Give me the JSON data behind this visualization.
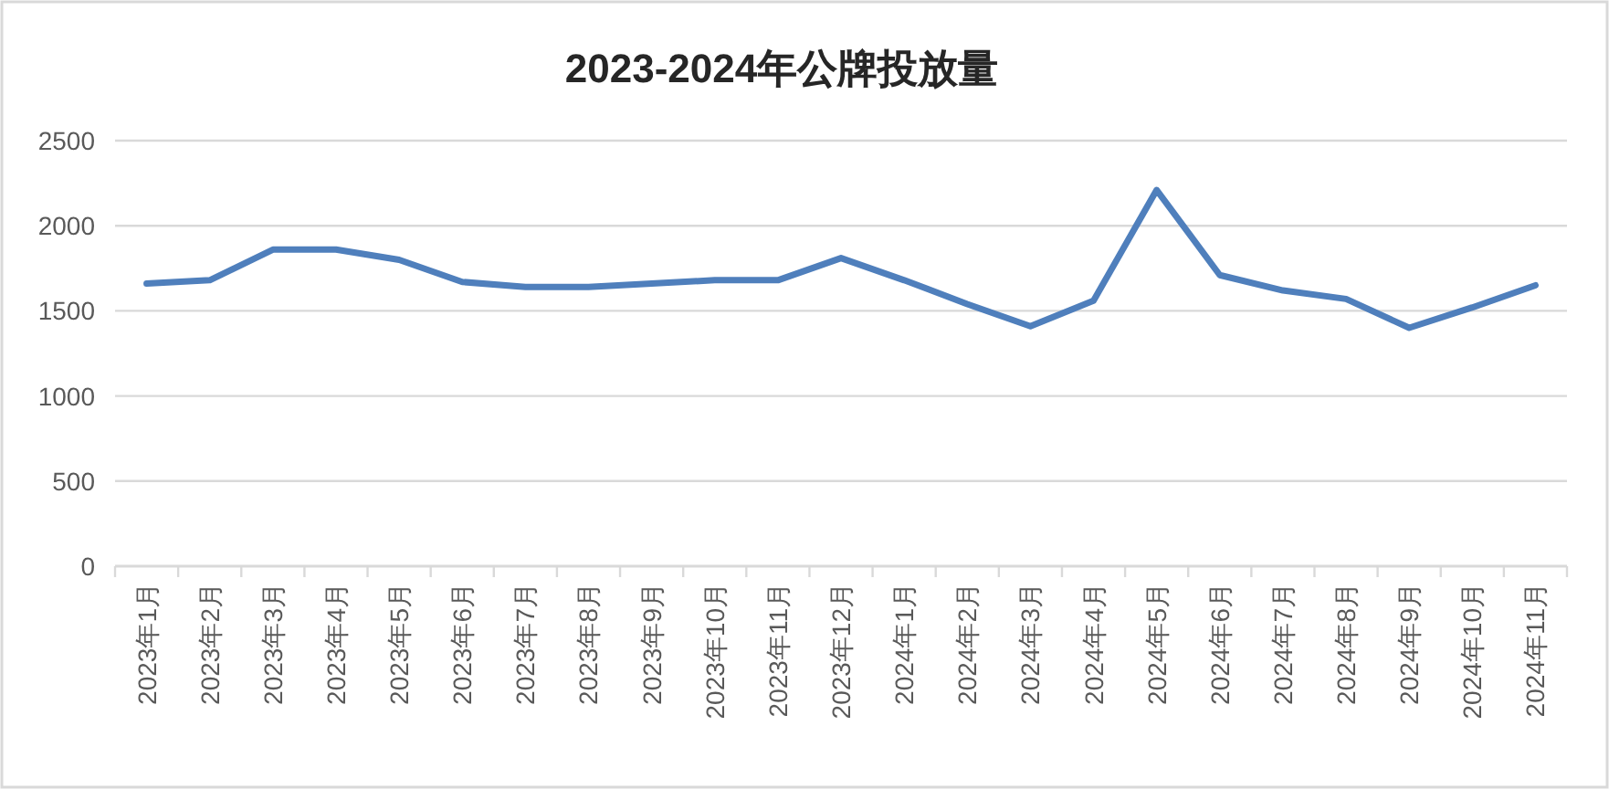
{
  "chart_data": {
    "type": "line",
    "title": "2023-2024年公牌投放量",
    "categories": [
      "2023年1月",
      "2023年2月",
      "2023年3月",
      "2023年4月",
      "2023年5月",
      "2023年6月",
      "2023年7月",
      "2023年8月",
      "2023年9月",
      "2023年10月",
      "2023年11月",
      "2023年12月",
      "2024年1月",
      "2024年2月",
      "2024年3月",
      "2024年4月",
      "2024年5月",
      "2024年6月",
      "2024年7月",
      "2024年8月",
      "2024年9月",
      "2024年10月",
      "2024年11月"
    ],
    "series": [
      {
        "color": "#4f7fbc",
        "values": [
          1660,
          1680,
          1860,
          1860,
          1800,
          1670,
          1640,
          1640,
          1660,
          1680,
          1680,
          1810,
          1680,
          1540,
          1410,
          1560,
          2210,
          1710,
          1620,
          1570,
          1400,
          1520,
          1650
        ]
      }
    ],
    "ylim": [
      0,
      2500
    ],
    "yticks": [
      0,
      500,
      1000,
      1500,
      2000,
      2500
    ],
    "grid": "y",
    "line_style": "solid"
  }
}
